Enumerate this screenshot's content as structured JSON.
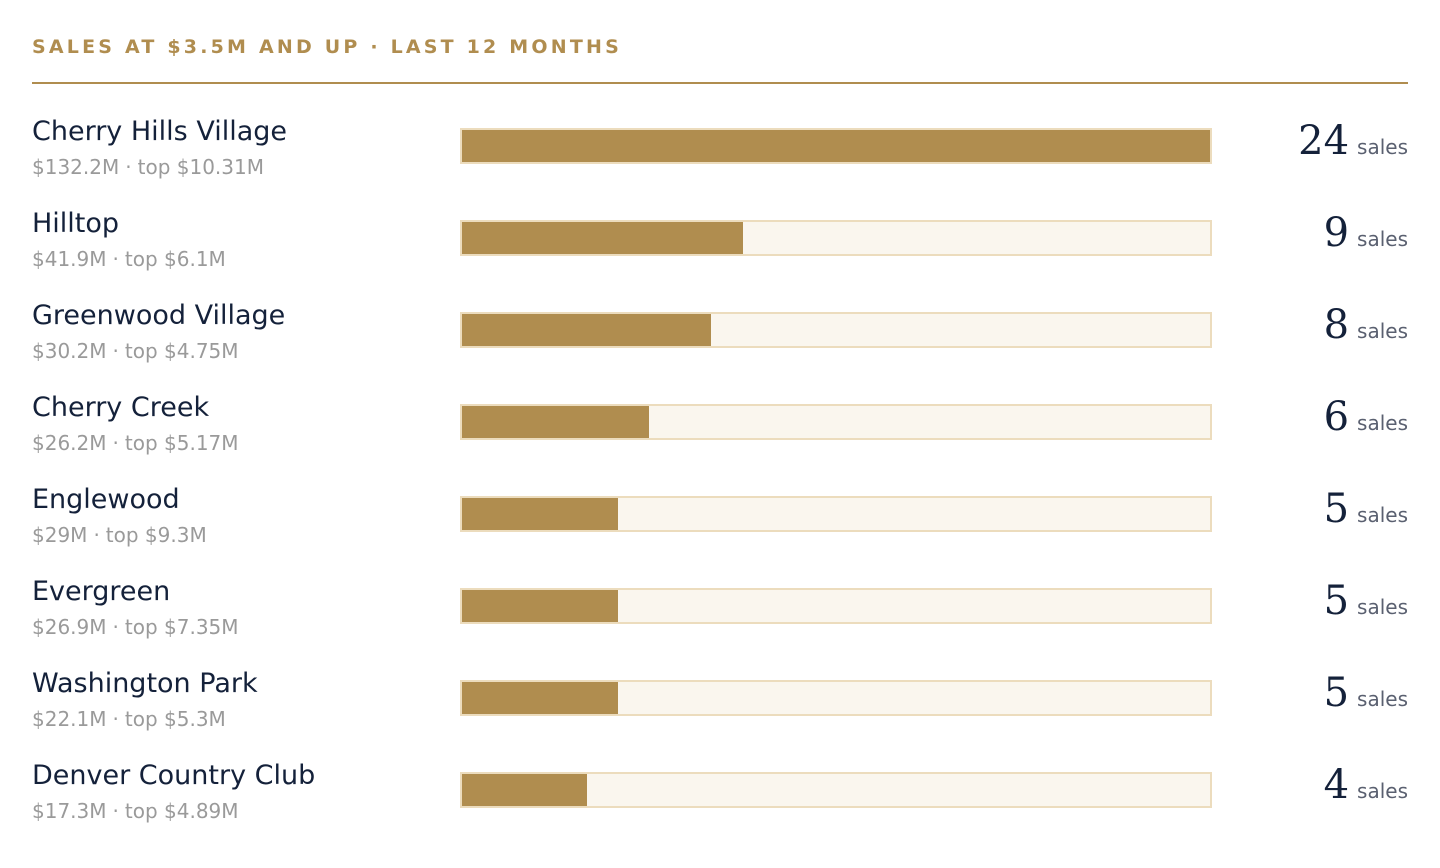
{
  "header": {
    "title": "SALES AT $3.5M AND UP · LAST 12 MONTHS"
  },
  "colors": {
    "accent": "#b08d4f",
    "track": "#faf6ee",
    "track_border": "#ecdcbd",
    "name": "#14213a",
    "meta": "#9a9a9a"
  },
  "unit_label": "sales",
  "chart_data": {
    "type": "bar",
    "orientation": "horizontal",
    "title": "SALES AT $3.5M AND UP · LAST 12 MONTHS",
    "xlim": [
      0,
      24
    ],
    "categories": [
      "Cherry Hills Village",
      "Hilltop",
      "Greenwood Village",
      "Cherry Creek",
      "Englewood",
      "Evergreen",
      "Washington Park",
      "Denver Country Club"
    ],
    "values": [
      24,
      9,
      8,
      6,
      5,
      5,
      5,
      4
    ],
    "rows": [
      {
        "name": "Cherry Hills Village",
        "volume": "$132.2M",
        "top": "top $10.31M",
        "sales": 24
      },
      {
        "name": "Hilltop",
        "volume": "$41.9M",
        "top": "top $6.1M",
        "sales": 9
      },
      {
        "name": "Greenwood Village",
        "volume": "$30.2M",
        "top": "top $4.75M",
        "sales": 8
      },
      {
        "name": "Cherry Creek",
        "volume": "$26.2M",
        "top": "top $5.17M",
        "sales": 6
      },
      {
        "name": "Englewood",
        "volume": "$29M",
        "top": "top $9.3M",
        "sales": 5
      },
      {
        "name": "Evergreen",
        "volume": "$26.9M",
        "top": "top $7.35M",
        "sales": 5
      },
      {
        "name": "Washington Park",
        "volume": "$22.1M",
        "top": "top $5.3M",
        "sales": 5
      },
      {
        "name": "Denver Country Club",
        "volume": "$17.3M",
        "top": "top $4.89M",
        "sales": 4
      }
    ]
  }
}
